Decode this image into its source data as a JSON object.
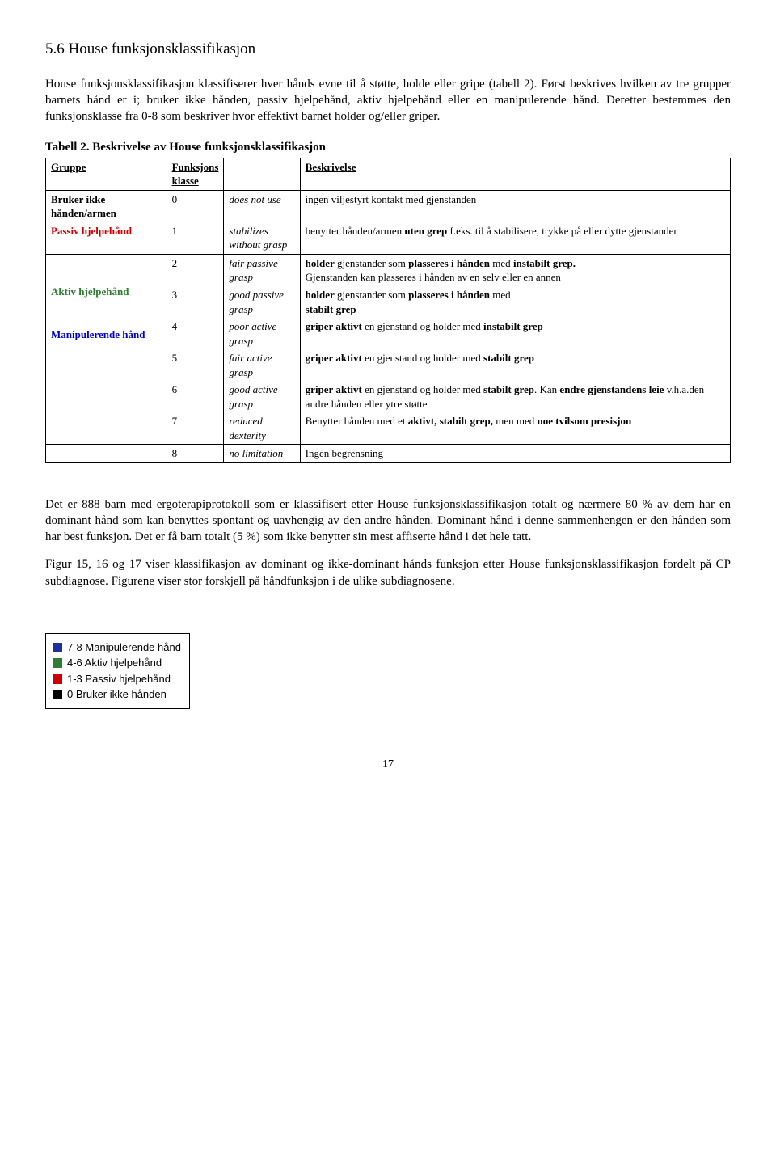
{
  "heading": "5.6 House funksjonsklassifikasjon",
  "intro": "House funksjonsklassifikasjon klassifiserer hver hånds evne til å støtte, holde eller gripe (tabell 2). Først beskrives hvilken av tre grupper barnets hånd er i; bruker ikke hånden, passiv hjelpehånd, aktiv hjelpehånd eller en manipulerende hånd. Deretter bestemmes den funksjonsklasse fra 0-8 som beskriver hvor effektivt barnet holder og/eller griper.",
  "table_caption": "Tabell 2. Beskrivelse av House funksjonsklassifikasjon",
  "headers": {
    "group": "Gruppe",
    "klass1": "Funksjons",
    "klass2": "klasse",
    "desc": "Beskrivelse"
  },
  "groups": {
    "g0": "Bruker ikke hånden/armen",
    "g1": "Passiv hjelpehånd",
    "g2": "Aktiv hjelpehånd",
    "g3": "Manipulerende hånd"
  },
  "rows": {
    "r0": {
      "k": "0",
      "fn": "does not use",
      "d": "ingen viljestyrt kontakt med gjenstanden"
    },
    "r1": {
      "k": "1",
      "fn1": "stabilizes",
      "fn2": "without grasp",
      "d_a": "benytter hånden/armen ",
      "d_b": "uten grep",
      "d_c": " f.eks. til å stabilisere, trykke på eller dytte gjenstander"
    },
    "r2": {
      "k": "2",
      "fn1": "fair passive",
      "fn2": "grasp",
      "d_a": "holder",
      "d_b": " gjenstander som ",
      "d_c": "plasseres i hånden",
      "d_d": " med ",
      "d_e": "instabilt grep.",
      "d_f": "Gjenstanden kan plasseres i hånden av en selv eller en annen"
    },
    "r3": {
      "k": "3",
      "fn1": "good passive",
      "fn2": "grasp",
      "d_a": "holder",
      "d_b": " gjenstander som ",
      "d_c": "plasseres i hånden",
      "d_d": " med",
      "d_e": "stabilt grep"
    },
    "r4": {
      "k": "4",
      "fn1": "poor active",
      "fn2": "grasp",
      "d_a": "griper aktivt",
      "d_b": " en gjenstand og holder med ",
      "d_c": "instabilt grep"
    },
    "r5": {
      "k": "5",
      "fn1": "fair active",
      "fn2": "grasp",
      "d_a": "griper aktivt",
      "d_b": " en gjenstand og holder med ",
      "d_c": "stabilt grep"
    },
    "r6": {
      "k": "6",
      "fn1": "good active",
      "fn2": "grasp",
      "d_a": "griper aktivt",
      "d_b": " en gjenstand og holder med ",
      "d_c": "stabilt grep",
      "d_d": ". Kan ",
      "d_e": "endre gjenstandens leie",
      "d_f": " v.h.a.den andre hånden eller ytre støtte"
    },
    "r7": {
      "k": "7",
      "fn": "reduced dexterity",
      "d_a": "Benytter hånden med et ",
      "d_b": "aktivt, stabilt grep,",
      "d_c": " men med ",
      "d_d": "noe tvilsom presisjon"
    },
    "r8": {
      "k": "8",
      "fn": "no limitation",
      "d": "Ingen begrensning"
    }
  },
  "para1": "Det er 888 barn med ergoterapiprotokoll som er klassifisert etter House funksjonsklassifikasjon totalt og nærmere 80 % av dem har en dominant hånd som kan benyttes spontant og uavhengig av den andre hånden. Dominant hånd i denne sammenhengen er den hånden som har best funksjon. Det er få barn totalt (5 %) som ikke benytter sin mest affiserte hånd i det hele tatt.",
  "para2": "Figur 15, 16 og 17 viser klassifikasjon av dominant og ikke-dominant hånds funksjon etter House funksjonsklassifikasjon fordelt på CP subdiagnose. Figurene viser stor forskjell på håndfunksjon i de ulike subdiagnosene.",
  "legend": {
    "l1": "7-8 Manipulerende hånd",
    "l2": "4-6 Aktiv hjelpehånd",
    "l3": "1-3 Passiv hjelpehånd",
    "l4": "0 Bruker ikke hånden"
  },
  "page_number": "17",
  "colors": {
    "blue": "#0000cc",
    "red": "#cc0000",
    "green": "#2e7d32",
    "black": "#000000",
    "swatch_blue": "#1f2f9e"
  }
}
